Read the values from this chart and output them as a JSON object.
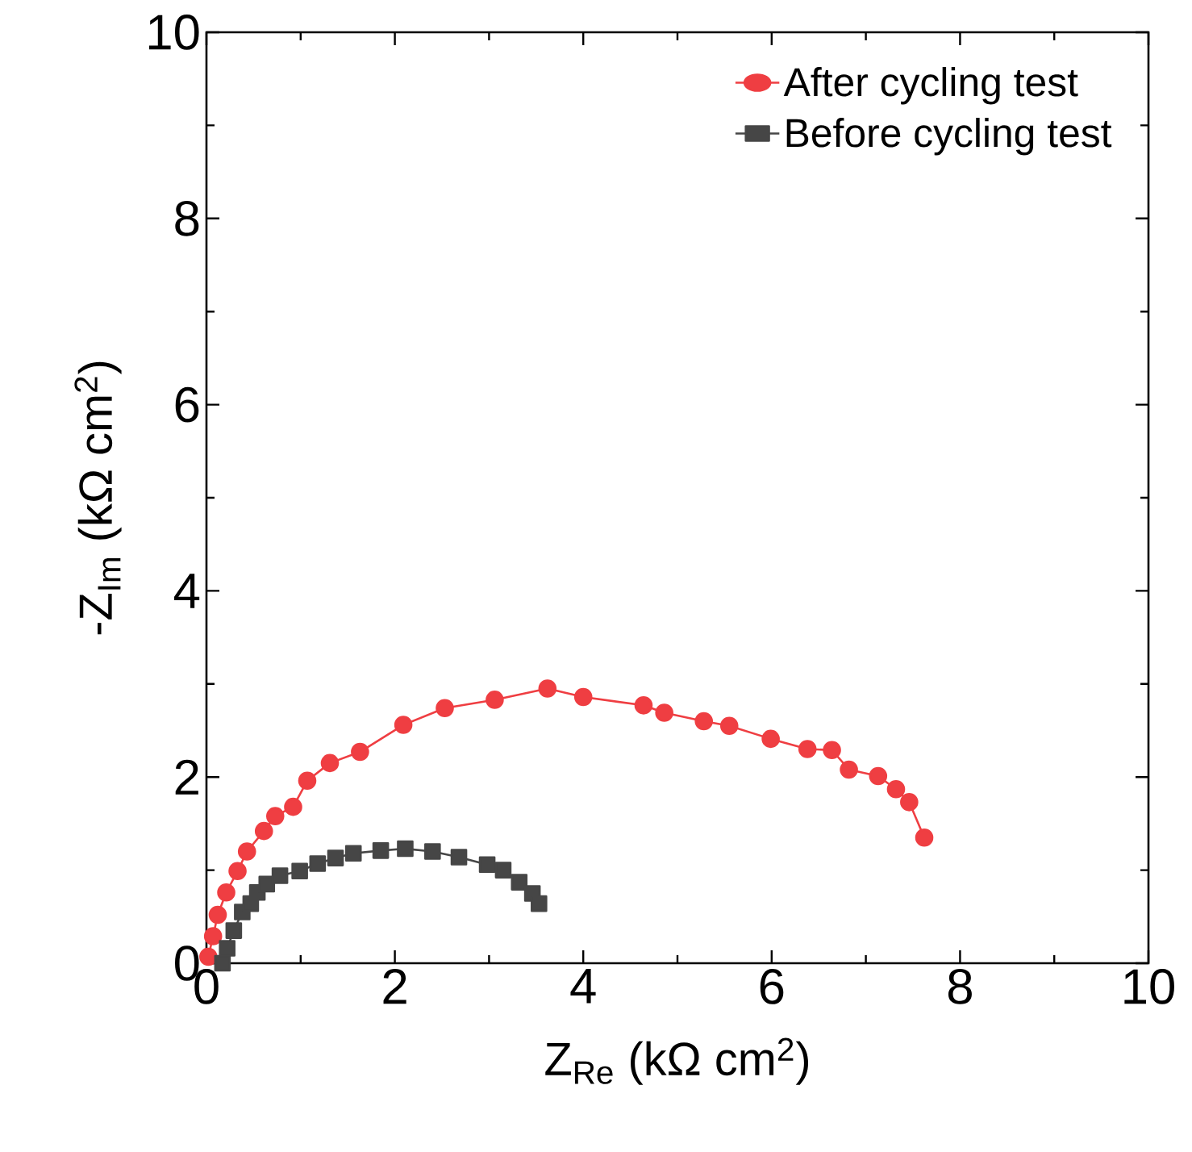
{
  "chart_data": {
    "type": "line",
    "xlabel": "Z$_{Re}$ (kΩ cm$^{2}$)",
    "ylabel": "-Z$_{Im}$ (kΩ cm$^{2}$)",
    "xlim": [
      0,
      10
    ],
    "ylim": [
      0,
      10
    ],
    "xticks": [
      0,
      2,
      4,
      6,
      8,
      10
    ],
    "yticks": [
      0,
      2,
      4,
      6,
      8,
      10
    ],
    "grid": false,
    "legend": "top right",
    "series": [
      {
        "name": "After cycling test",
        "color": "#ef3e42",
        "marker": "circle",
        "x": [
          0.02,
          0.07,
          0.12,
          0.21,
          0.33,
          0.43,
          0.61,
          0.73,
          0.92,
          1.07,
          1.31,
          1.63,
          2.09,
          2.53,
          3.06,
          3.62,
          4.0,
          4.64,
          4.86,
          5.28,
          5.55,
          5.99,
          6.38,
          6.64,
          6.82,
          7.13,
          7.32,
          7.46,
          7.62
        ],
        "values": [
          0.07,
          0.29,
          0.52,
          0.76,
          0.99,
          1.2,
          1.42,
          1.58,
          1.68,
          1.96,
          2.15,
          2.27,
          2.56,
          2.74,
          2.83,
          2.95,
          2.86,
          2.77,
          2.69,
          2.6,
          2.55,
          2.41,
          2.3,
          2.29,
          2.08,
          2.01,
          1.87,
          1.73,
          1.35
        ]
      },
      {
        "name": "Before cycling test",
        "color": "#464646",
        "marker": "square",
        "x": [
          0.17,
          0.22,
          0.29,
          0.38,
          0.47,
          0.54,
          0.64,
          0.78,
          0.99,
          1.18,
          1.37,
          1.56,
          1.85,
          2.11,
          2.4,
          2.68,
          2.98,
          3.15,
          3.32,
          3.46,
          3.53
        ],
        "values": [
          0.0,
          0.16,
          0.35,
          0.55,
          0.64,
          0.76,
          0.85,
          0.94,
          0.99,
          1.07,
          1.13,
          1.18,
          1.21,
          1.23,
          1.2,
          1.14,
          1.06,
          1.0,
          0.87,
          0.75,
          0.64
        ]
      }
    ]
  }
}
